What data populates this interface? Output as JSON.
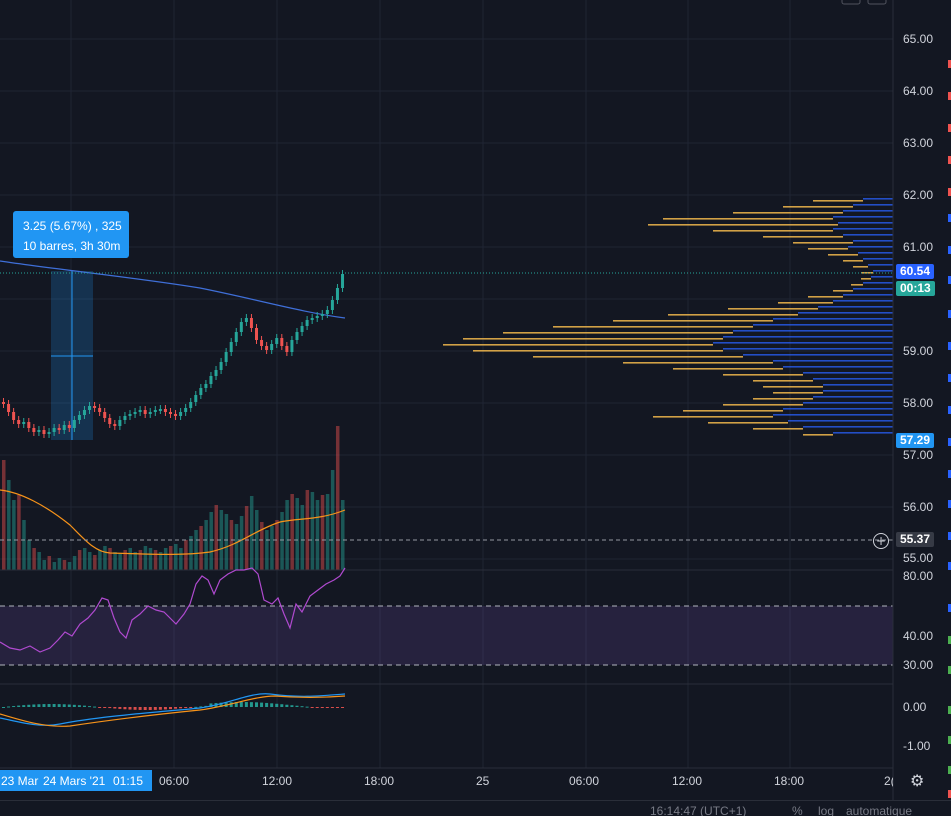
{
  "price_axis": {
    "labels": [
      "65.00",
      "64.00",
      "63.00",
      "62.00",
      "61.00",
      "59.00",
      "58.00",
      "57.00",
      "56.00",
      "55.00"
    ],
    "last_price": "60.54",
    "countdown": "00:13",
    "low_marker": "57.29",
    "crosshair_price": "55.37",
    "rsi_labels": [
      "80.00",
      "40.00",
      "30.00"
    ],
    "macd_labels": [
      "0.00",
      "-1.00"
    ]
  },
  "time_axis": {
    "labels": [
      "06:00",
      "12:00",
      "18:00",
      "25",
      "06:00",
      "12:00",
      "18:00",
      "2("
    ],
    "range_start": "23 Mar",
    "range_end": "24 Mars '21",
    "range_time": "01:15"
  },
  "measure": {
    "line1": "3.25 (5.67%) , 325",
    "line2": "10 barres, 3h 30m"
  },
  "footer": {
    "clock": "16:14:47 (UTC+1)",
    "percent": "%",
    "log": "log",
    "auto": "automatique"
  },
  "colors": {
    "background": "#131722",
    "up": "#26a69a",
    "down": "#ef5350",
    "accent": "#2196f3",
    "ma": "#f7931a",
    "rsi": "#9c27b0",
    "profile_gold": "#e8b04a",
    "profile_blue": "#2962ff"
  }
}
